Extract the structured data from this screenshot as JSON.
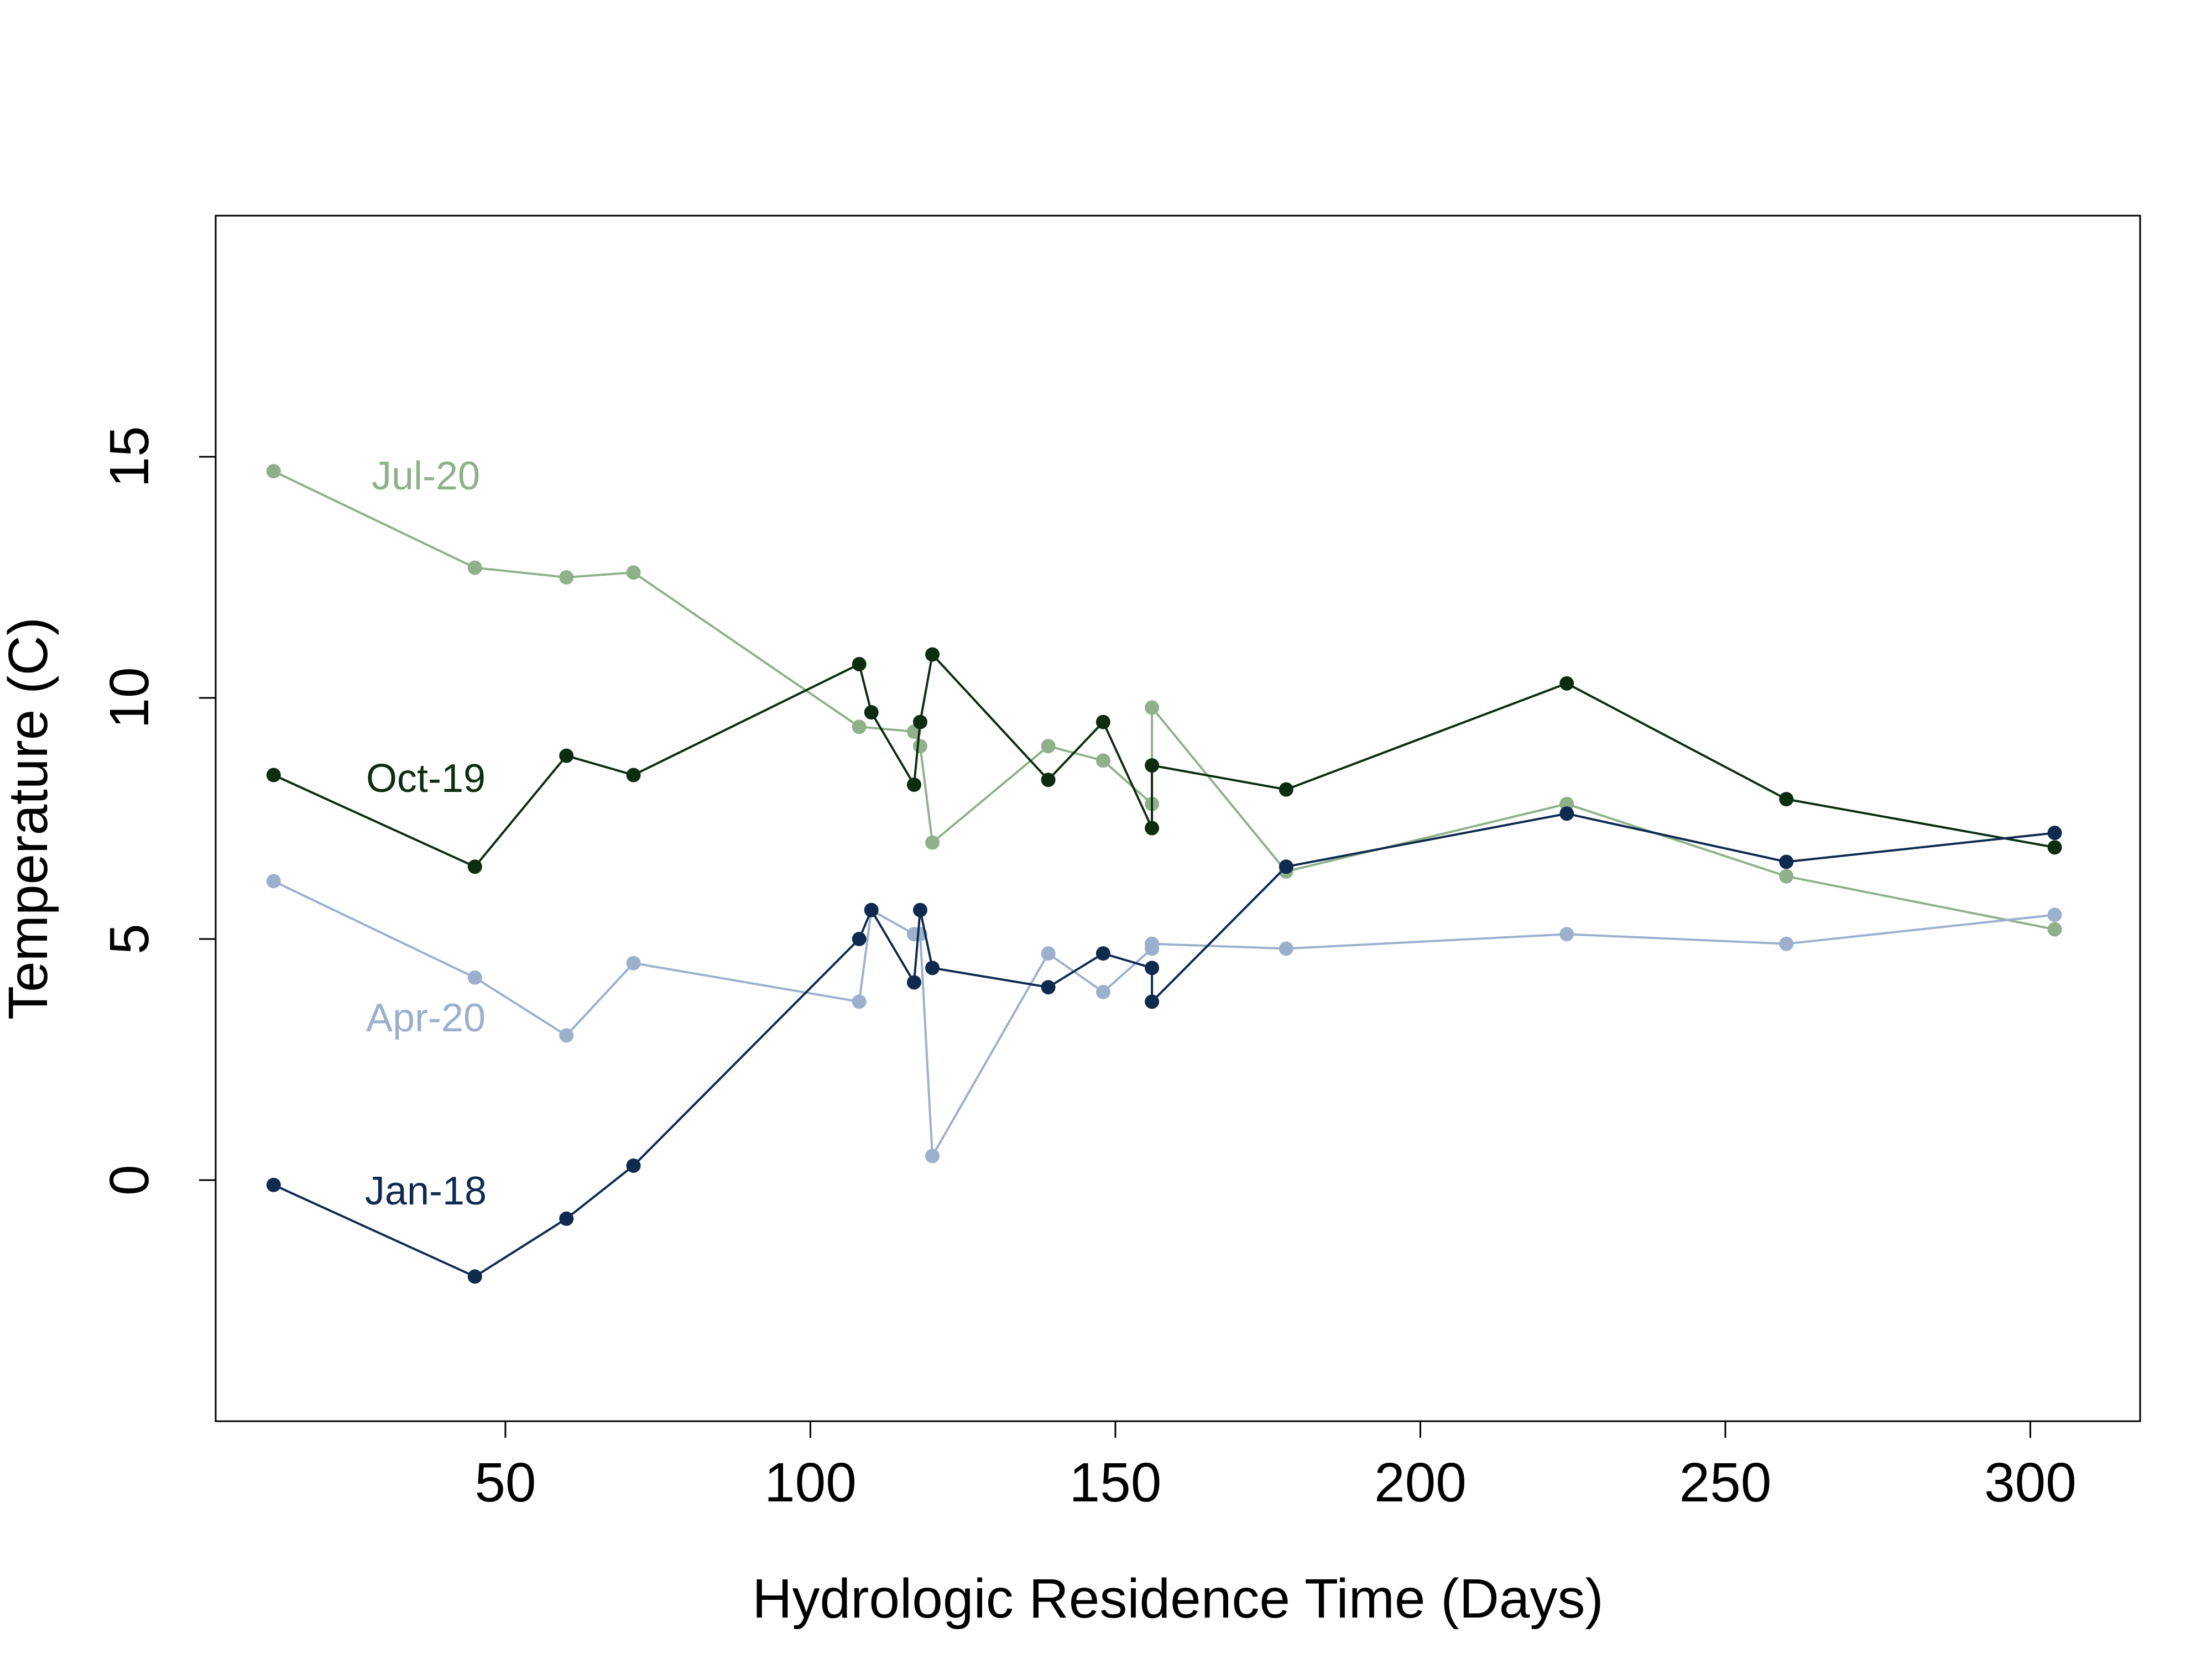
{
  "chart_data": {
    "type": "line",
    "xlabel": "Hydrologic Residence Time (Days)",
    "ylabel": "Temperature (C)",
    "xlim": [
      2.5,
      318
    ],
    "ylim": [
      -5,
      20
    ],
    "xticks": [
      50,
      100,
      150,
      200,
      250,
      300
    ],
    "yticks": [
      0,
      5,
      10,
      15
    ],
    "grid": false,
    "legend": "inline labels",
    "series": [
      {
        "name": "Jul-20",
        "color": "#8fb08b",
        "points": [
          [
            12,
            14.7
          ],
          [
            45,
            12.7
          ],
          [
            60,
            12.5
          ],
          [
            71,
            12.6
          ],
          [
            108,
            9.4
          ],
          [
            117,
            9.3
          ],
          [
            118,
            9.0
          ],
          [
            120,
            7.0
          ],
          [
            139,
            9.0
          ],
          [
            148,
            8.7
          ],
          [
            156,
            7.8
          ],
          [
            156,
            9.8
          ],
          [
            178,
            6.4
          ],
          [
            224,
            7.8
          ],
          [
            260,
            6.3
          ],
          [
            304,
            5.2
          ]
        ]
      },
      {
        "name": "Oct-19",
        "color": "#0c2d10",
        "points": [
          [
            12,
            8.4
          ],
          [
            45,
            6.5
          ],
          [
            60,
            8.8
          ],
          [
            71,
            8.4
          ],
          [
            108,
            10.7
          ],
          [
            110,
            9.7
          ],
          [
            117,
            8.2
          ],
          [
            118,
            9.5
          ],
          [
            120,
            10.9
          ],
          [
            139,
            8.3
          ],
          [
            148,
            9.5
          ],
          [
            156,
            7.3
          ],
          [
            156,
            8.6
          ],
          [
            178,
            8.1
          ],
          [
            224,
            10.3
          ],
          [
            260,
            7.9
          ],
          [
            304,
            6.9
          ]
        ]
      },
      {
        "name": "Apr-20",
        "color": "#9cb0cd",
        "points": [
          [
            12,
            6.2
          ],
          [
            45,
            4.2
          ],
          [
            60,
            3.0
          ],
          [
            71,
            4.5
          ],
          [
            108,
            3.7
          ],
          [
            110,
            5.6
          ],
          [
            117,
            5.1
          ],
          [
            118,
            5.1
          ],
          [
            120,
            0.5
          ],
          [
            139,
            4.7
          ],
          [
            148,
            3.9
          ],
          [
            156,
            4.8
          ],
          [
            156,
            4.9
          ],
          [
            178,
            4.8
          ],
          [
            224,
            5.1
          ],
          [
            260,
            4.9
          ],
          [
            304,
            5.5
          ]
        ]
      },
      {
        "name": "Jan-18",
        "color": "#0f2a4f",
        "points": [
          [
            12,
            -0.1
          ],
          [
            45,
            -2.0
          ],
          [
            60,
            -0.8
          ],
          [
            71,
            0.3
          ],
          [
            108,
            5.0
          ],
          [
            110,
            5.6
          ],
          [
            117,
            4.1
          ],
          [
            118,
            5.6
          ],
          [
            120,
            4.4
          ],
          [
            139,
            4.0
          ],
          [
            148,
            4.7
          ],
          [
            156,
            4.4
          ],
          [
            156,
            3.7
          ],
          [
            178,
            6.5
          ],
          [
            224,
            7.6
          ],
          [
            260,
            6.6
          ],
          [
            304,
            7.2
          ]
        ]
      }
    ]
  }
}
